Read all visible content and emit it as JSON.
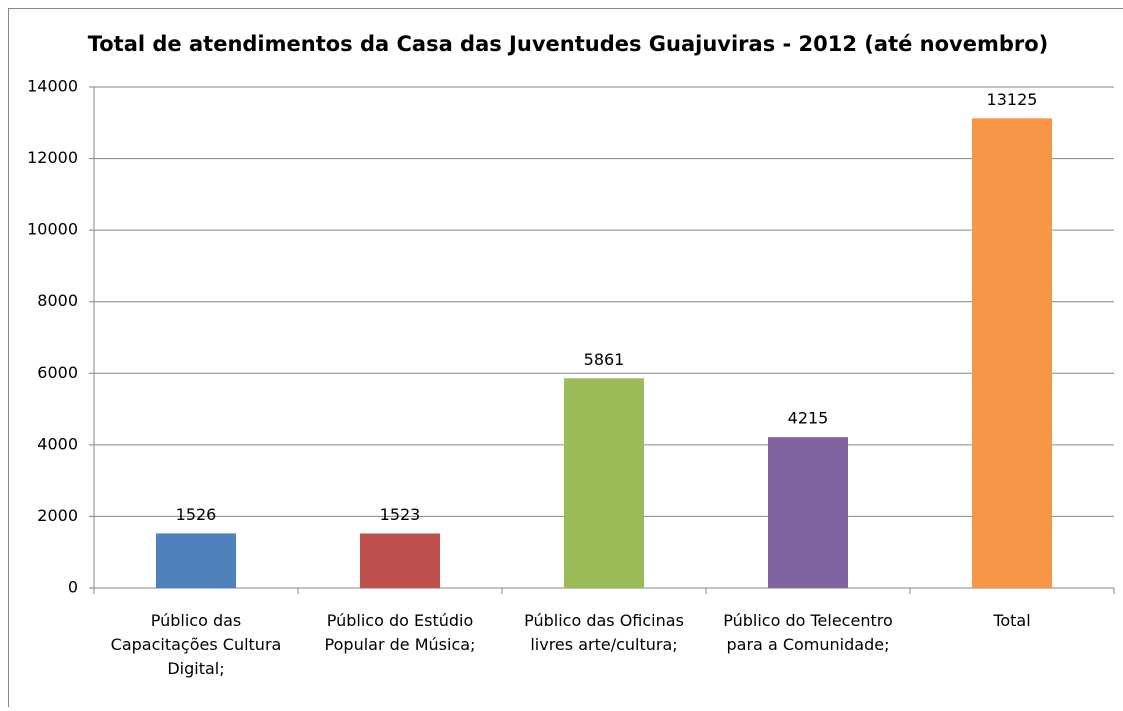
{
  "chart_data": {
    "type": "bar",
    "title": "Total de atendimentos da Casa das Juventudes Guajuviras - 2012 (até novembro)",
    "categories": [
      "Público das Capacitações Cultura Digital;",
      "Público do Estúdio Popular de Música;",
      "Público das Oficinas livres arte/cultura;",
      "Público do Telecentro para a Comunidade;",
      "Total"
    ],
    "values": [
      1526,
      1523,
      5861,
      4215,
      13125
    ],
    "colors": [
      "#4f81bd",
      "#c0504d",
      "#9bbb59",
      "#8064a2",
      "#f79646"
    ],
    "ylim": [
      0,
      14000
    ],
    "yticks": [
      0,
      2000,
      4000,
      6000,
      8000,
      10000,
      12000,
      14000
    ],
    "grid": true
  }
}
